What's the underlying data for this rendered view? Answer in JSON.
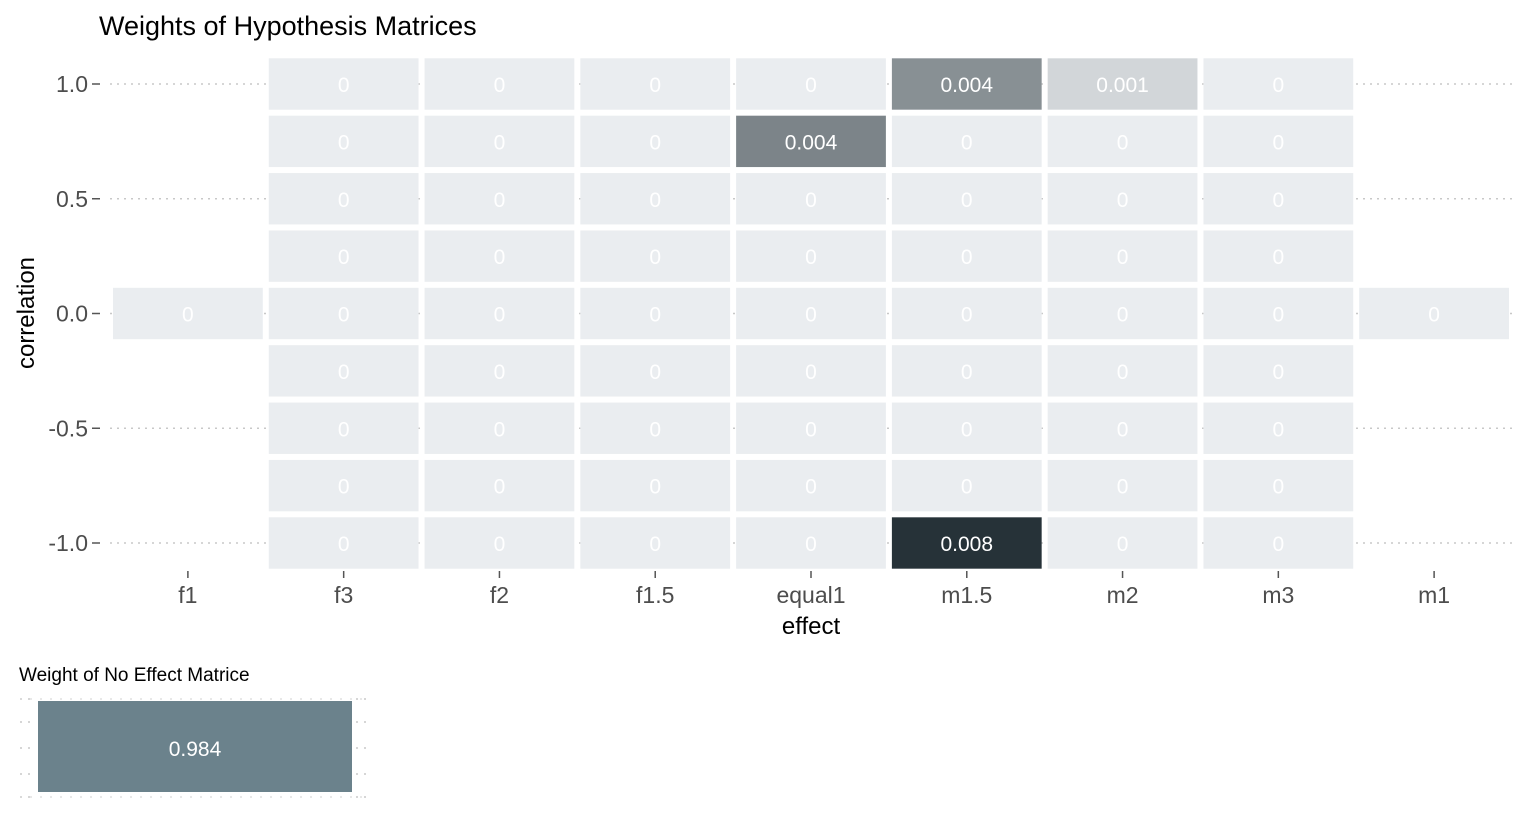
{
  "chart_data": [
    {
      "type": "heatmap",
      "title": "Weights of Hypothesis Matrices",
      "xlabel": "effect",
      "ylabel": "correlation",
      "x_categories": [
        "f1",
        "f3",
        "f2",
        "f1.5",
        "equal1",
        "m1.5",
        "m2",
        "m3",
        "m1"
      ],
      "y_values": [
        1.0,
        0.75,
        0.5,
        0.25,
        0.0,
        -0.25,
        -0.5,
        -0.75,
        -1.0
      ],
      "y_tick_labels": [
        "1.0",
        "0.5",
        "0.0",
        "-0.5",
        "-1.0"
      ],
      "y_tick_values": [
        1.0,
        0.5,
        0.0,
        -0.5,
        -1.0
      ],
      "grid": true,
      "color_low": "#eaedf0",
      "color_high": "#263238",
      "value_max": 0.008,
      "cells": [
        {
          "x": "f1",
          "y": 0.0,
          "value": 0,
          "label": "0"
        },
        {
          "x": "m1",
          "y": 0.0,
          "value": 0,
          "label": "0"
        },
        {
          "x": "f3",
          "y": 1.0,
          "value": 0,
          "label": "0"
        },
        {
          "x": "f2",
          "y": 1.0,
          "value": 0,
          "label": "0"
        },
        {
          "x": "f1.5",
          "y": 1.0,
          "value": 0,
          "label": "0"
        },
        {
          "x": "equal1",
          "y": 1.0,
          "value": 0,
          "label": "0"
        },
        {
          "x": "m1.5",
          "y": 1.0,
          "value": 0.004,
          "label": "0.004"
        },
        {
          "x": "m2",
          "y": 1.0,
          "value": 0.001,
          "label": "0.001"
        },
        {
          "x": "m3",
          "y": 1.0,
          "value": 0,
          "label": "0"
        },
        {
          "x": "f3",
          "y": 0.75,
          "value": 0,
          "label": "0"
        },
        {
          "x": "f2",
          "y": 0.75,
          "value": 0,
          "label": "0"
        },
        {
          "x": "f1.5",
          "y": 0.75,
          "value": 0,
          "label": "0"
        },
        {
          "x": "equal1",
          "y": 0.75,
          "value": 0.0045,
          "label": "0.004"
        },
        {
          "x": "m1.5",
          "y": 0.75,
          "value": 0,
          "label": "0"
        },
        {
          "x": "m2",
          "y": 0.75,
          "value": 0,
          "label": "0"
        },
        {
          "x": "m3",
          "y": 0.75,
          "value": 0,
          "label": "0"
        },
        {
          "x": "f3",
          "y": 0.5,
          "value": 0,
          "label": "0"
        },
        {
          "x": "f2",
          "y": 0.5,
          "value": 0,
          "label": "0"
        },
        {
          "x": "f1.5",
          "y": 0.5,
          "value": 0,
          "label": "0"
        },
        {
          "x": "equal1",
          "y": 0.5,
          "value": 0,
          "label": "0"
        },
        {
          "x": "m1.5",
          "y": 0.5,
          "value": 0,
          "label": "0"
        },
        {
          "x": "m2",
          "y": 0.5,
          "value": 0,
          "label": "0"
        },
        {
          "x": "m3",
          "y": 0.5,
          "value": 0,
          "label": "0"
        },
        {
          "x": "f3",
          "y": 0.25,
          "value": 0,
          "label": "0"
        },
        {
          "x": "f2",
          "y": 0.25,
          "value": 0,
          "label": "0"
        },
        {
          "x": "f1.5",
          "y": 0.25,
          "value": 0,
          "label": "0"
        },
        {
          "x": "equal1",
          "y": 0.25,
          "value": 0,
          "label": "0"
        },
        {
          "x": "m1.5",
          "y": 0.25,
          "value": 0,
          "label": "0"
        },
        {
          "x": "m2",
          "y": 0.25,
          "value": 0,
          "label": "0"
        },
        {
          "x": "m3",
          "y": 0.25,
          "value": 0,
          "label": "0"
        },
        {
          "x": "f3",
          "y": 0.0,
          "value": 0,
          "label": "0"
        },
        {
          "x": "f2",
          "y": 0.0,
          "value": 0,
          "label": "0"
        },
        {
          "x": "f1.5",
          "y": 0.0,
          "value": 0,
          "label": "0"
        },
        {
          "x": "equal1",
          "y": 0.0,
          "value": 0,
          "label": "0"
        },
        {
          "x": "m1.5",
          "y": 0.0,
          "value": 0,
          "label": "0"
        },
        {
          "x": "m2",
          "y": 0.0,
          "value": 0,
          "label": "0"
        },
        {
          "x": "m3",
          "y": 0.0,
          "value": 0,
          "label": "0"
        },
        {
          "x": "f3",
          "y": -0.25,
          "value": 0,
          "label": "0"
        },
        {
          "x": "f2",
          "y": -0.25,
          "value": 0,
          "label": "0"
        },
        {
          "x": "f1.5",
          "y": -0.25,
          "value": 0,
          "label": "0"
        },
        {
          "x": "equal1",
          "y": -0.25,
          "value": 0,
          "label": "0"
        },
        {
          "x": "m1.5",
          "y": -0.25,
          "value": 0,
          "label": "0"
        },
        {
          "x": "m2",
          "y": -0.25,
          "value": 0,
          "label": "0"
        },
        {
          "x": "m3",
          "y": -0.25,
          "value": 0,
          "label": "0"
        },
        {
          "x": "f3",
          "y": -0.5,
          "value": 0,
          "label": "0"
        },
        {
          "x": "f2",
          "y": -0.5,
          "value": 0,
          "label": "0"
        },
        {
          "x": "f1.5",
          "y": -0.5,
          "value": 0,
          "label": "0"
        },
        {
          "x": "equal1",
          "y": -0.5,
          "value": 0,
          "label": "0"
        },
        {
          "x": "m1.5",
          "y": -0.5,
          "value": 0,
          "label": "0"
        },
        {
          "x": "m2",
          "y": -0.5,
          "value": 0,
          "label": "0"
        },
        {
          "x": "m3",
          "y": -0.5,
          "value": 0,
          "label": "0"
        },
        {
          "x": "f3",
          "y": -0.75,
          "value": 0,
          "label": "0"
        },
        {
          "x": "f2",
          "y": -0.75,
          "value": 0,
          "label": "0"
        },
        {
          "x": "f1.5",
          "y": -0.75,
          "value": 0,
          "label": "0"
        },
        {
          "x": "equal1",
          "y": -0.75,
          "value": 0,
          "label": "0"
        },
        {
          "x": "m1.5",
          "y": -0.75,
          "value": 0,
          "label": "0"
        },
        {
          "x": "m2",
          "y": -0.75,
          "value": 0,
          "label": "0"
        },
        {
          "x": "m3",
          "y": -0.75,
          "value": 0,
          "label": "0"
        },
        {
          "x": "f3",
          "y": -1.0,
          "value": 0,
          "label": "0"
        },
        {
          "x": "f2",
          "y": -1.0,
          "value": 0,
          "label": "0"
        },
        {
          "x": "f1.5",
          "y": -1.0,
          "value": 0,
          "label": "0"
        },
        {
          "x": "equal1",
          "y": -1.0,
          "value": 0,
          "label": "0"
        },
        {
          "x": "m1.5",
          "y": -1.0,
          "value": 0.008,
          "label": "0.008"
        },
        {
          "x": "m2",
          "y": -1.0,
          "value": 0,
          "label": "0"
        },
        {
          "x": "m3",
          "y": -1.0,
          "value": 0,
          "label": "0"
        }
      ]
    },
    {
      "type": "heatmap",
      "title": "Weight of No Effect Matrice",
      "color": "#6b828c",
      "grid": true,
      "cells": [
        {
          "value": 0.984,
          "label": "0.984"
        }
      ]
    }
  ]
}
